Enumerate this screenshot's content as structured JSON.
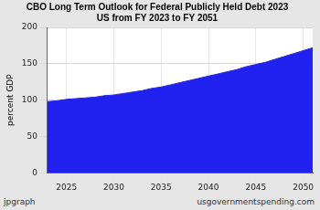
{
  "chart_data": {
    "type": "area",
    "title": [
      "CBO Long Term Outlook for Federal Publicly Held Debt 2023",
      "US from FY 2023 to FY 2051"
    ],
    "y_label": "percent GDP",
    "annotations": [
      "jpgraph",
      "usgovernmentspending.com"
    ],
    "x": [
      2023,
      2024,
      2025,
      2026,
      2027,
      2028,
      2029,
      2030,
      2031,
      2032,
      2033,
      2034,
      2035,
      2036,
      2037,
      2038,
      2039,
      2040,
      2041,
      2042,
      2043,
      2044,
      2045,
      2046,
      2047,
      2048,
      2049,
      2050,
      2051
    ],
    "values": [
      98,
      99,
      101,
      102,
      103,
      104,
      106,
      107,
      109,
      111,
      113,
      116,
      118,
      121,
      124,
      127,
      130,
      133,
      136,
      139,
      142,
      146,
      149,
      152,
      156,
      160,
      164,
      168,
      172
    ],
    "color": "#2222f0",
    "xlim": [
      2023,
      2051
    ],
    "xticks": [
      2025,
      2030,
      2035,
      2040,
      2045,
      2050
    ],
    "ylim": [
      0,
      200
    ],
    "yticks": [
      0,
      50,
      100,
      150,
      200
    ],
    "grid": true
  }
}
